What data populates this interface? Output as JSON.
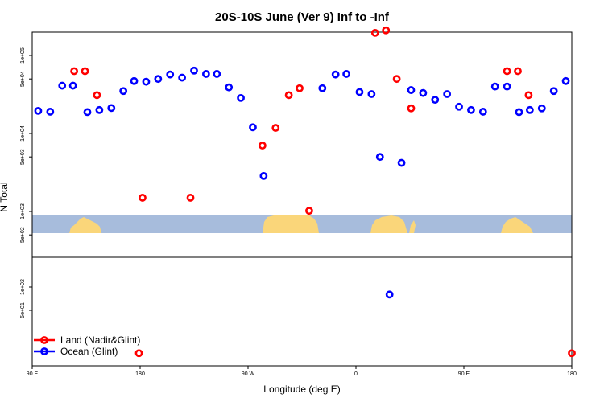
{
  "chart_data": {
    "type": "scatter",
    "title": "20S-10S June (Ver 9)   Inf to -Inf",
    "xlabel": "Longitude (deg E)",
    "ylabel": "N Total",
    "y_scale": "log",
    "x_ticks": [
      {
        "x": 90,
        "label": "90 E"
      },
      {
        "x": 180,
        "label": "180"
      },
      {
        "x": 270,
        "label": "90 W"
      },
      {
        "x": 360,
        "label": "0"
      },
      {
        "x": 450,
        "label": "90 E"
      },
      {
        "x": 540,
        "label": "180"
      }
    ],
    "y_ticks_upper": [
      {
        "y": 500,
        "label": "5e+02"
      },
      {
        "y": 1000,
        "label": "1e+03"
      },
      {
        "y": 5000,
        "label": "5e+03"
      },
      {
        "y": 10000,
        "label": "1e+04"
      },
      {
        "y": 50000,
        "label": "5e+04"
      },
      {
        "y": 100000,
        "label": "1e+05"
      }
    ],
    "y_ticks_lower": [
      {
        "y": 50,
        "label": "5e+01"
      },
      {
        "y": 100,
        "label": "1e+02"
      }
    ],
    "series": [
      {
        "name": "Land (Nadir&Glint)",
        "color": "#ff0000",
        "points": [
          {
            "x": 125,
            "y": 63000
          },
          {
            "x": 134,
            "y": 63000
          },
          {
            "x": 144,
            "y": 31000
          },
          {
            "x": 182,
            "y": 1500
          },
          {
            "x": 222,
            "y": 1500
          },
          {
            "x": 282,
            "y": 7000
          },
          {
            "x": 293,
            "y": 11800
          },
          {
            "x": 304,
            "y": 31000
          },
          {
            "x": 313,
            "y": 38000
          },
          {
            "x": 321,
            "y": 1020
          },
          {
            "x": 376,
            "y": 195000
          },
          {
            "x": 385,
            "y": 210000
          },
          {
            "x": 394,
            "y": 50000
          },
          {
            "x": 406,
            "y": 21000
          },
          {
            "x": 486,
            "y": 63000
          },
          {
            "x": 495,
            "y": 63000
          },
          {
            "x": 504,
            "y": 31000
          },
          {
            "x": 179,
            "y": 14
          },
          {
            "x": 540,
            "y": 14
          }
        ]
      },
      {
        "name": "Ocean (Glint)",
        "color": "#0000ff",
        "points": [
          {
            "x": 95,
            "y": 19500
          },
          {
            "x": 105,
            "y": 19000
          },
          {
            "x": 115,
            "y": 41000
          },
          {
            "x": 124,
            "y": 41000
          },
          {
            "x": 136,
            "y": 18800
          },
          {
            "x": 146,
            "y": 20000
          },
          {
            "x": 156,
            "y": 21200
          },
          {
            "x": 166,
            "y": 35000
          },
          {
            "x": 175,
            "y": 47000
          },
          {
            "x": 185,
            "y": 46000
          },
          {
            "x": 195,
            "y": 50000
          },
          {
            "x": 205,
            "y": 57000
          },
          {
            "x": 215,
            "y": 52000
          },
          {
            "x": 225,
            "y": 64000
          },
          {
            "x": 235,
            "y": 58000
          },
          {
            "x": 244,
            "y": 58000
          },
          {
            "x": 254,
            "y": 39000
          },
          {
            "x": 264,
            "y": 28500
          },
          {
            "x": 274,
            "y": 12000
          },
          {
            "x": 283,
            "y": 2850
          },
          {
            "x": 332,
            "y": 38000
          },
          {
            "x": 343,
            "y": 57000
          },
          {
            "x": 352,
            "y": 58000
          },
          {
            "x": 363,
            "y": 34000
          },
          {
            "x": 373,
            "y": 32000
          },
          {
            "x": 380,
            "y": 5000
          },
          {
            "x": 398,
            "y": 4200
          },
          {
            "x": 406,
            "y": 36000
          },
          {
            "x": 416,
            "y": 33000
          },
          {
            "x": 426,
            "y": 27000
          },
          {
            "x": 436,
            "y": 32000
          },
          {
            "x": 446,
            "y": 22000
          },
          {
            "x": 456,
            "y": 20000
          },
          {
            "x": 466,
            "y": 19000
          },
          {
            "x": 476,
            "y": 40000
          },
          {
            "x": 486,
            "y": 40000
          },
          {
            "x": 496,
            "y": 18800
          },
          {
            "x": 505,
            "y": 20000
          },
          {
            "x": 515,
            "y": 21000
          },
          {
            "x": 525,
            "y": 35000
          },
          {
            "x": 535,
            "y": 47000
          },
          {
            "x": 388,
            "y": 80
          }
        ]
      }
    ],
    "legend": {
      "position": "bottom-left",
      "entries": [
        {
          "label": "Land (Nadir&Glint)",
          "color": "#ff0000"
        },
        {
          "label": "Ocean (Glint)",
          "color": "#0000ff"
        }
      ]
    },
    "colors": {
      "ocean_band": "#a7bcdc",
      "land_band": "#fad67a"
    }
  }
}
